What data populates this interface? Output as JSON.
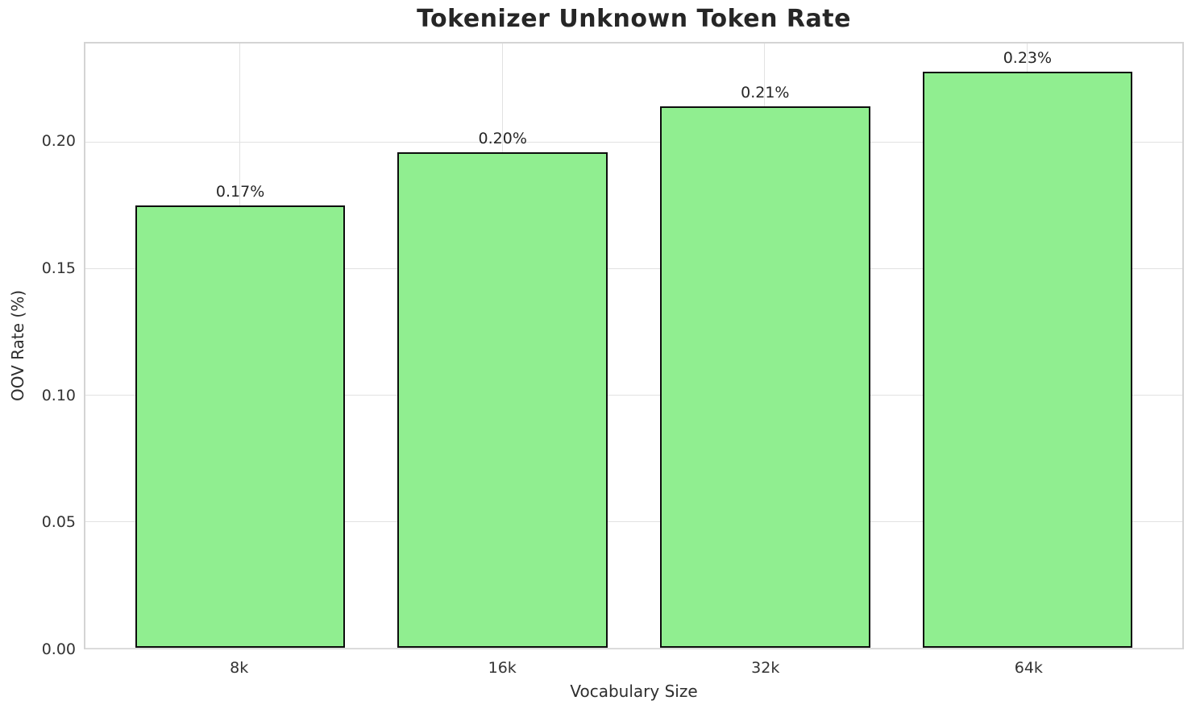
{
  "chart_data": {
    "type": "bar",
    "title": "Tokenizer Unknown Token Rate",
    "xlabel": "Vocabulary Size",
    "ylabel": "OOV Rate (%)",
    "categories": [
      "8k",
      "16k",
      "32k",
      "64k"
    ],
    "values": [
      0.175,
      0.196,
      0.214,
      0.228
    ],
    "bar_labels": [
      "0.17%",
      "0.20%",
      "0.21%",
      "0.23%"
    ],
    "yticks": [
      0.0,
      0.05,
      0.1,
      0.15,
      0.2
    ],
    "ytick_labels": [
      "0.00",
      "0.05",
      "0.10",
      "0.15",
      "0.20"
    ],
    "ylim": [
      0,
      0.239
    ],
    "grid": true,
    "legend": "none",
    "bar_color": "#90EE90",
    "bar_edge_color": "#0d0d0d",
    "grid_color": "#e2e2e2",
    "text_color": "#262626",
    "background_color": "#ffffff"
  }
}
